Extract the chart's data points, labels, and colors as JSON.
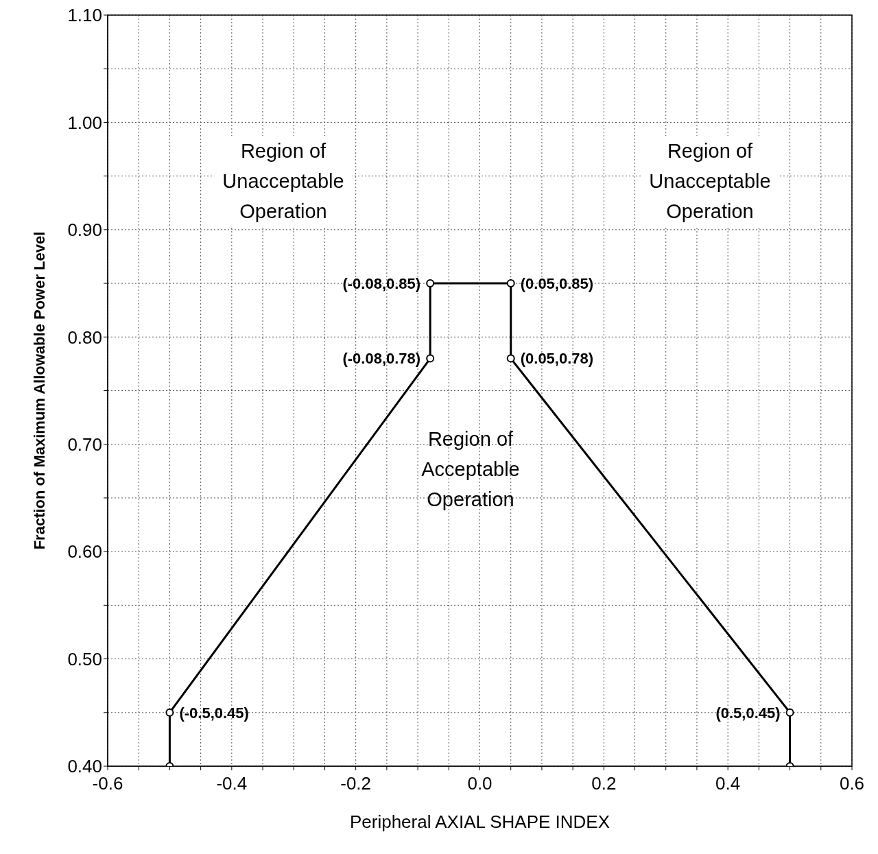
{
  "chart_data": {
    "type": "line",
    "xlabel": "Peripheral AXIAL SHAPE INDEX",
    "ylabel": "Fraction of Maximum Allowable Power Level",
    "x": [
      -0.5,
      -0.5,
      -0.08,
      -0.08,
      0.05,
      0.05,
      0.5,
      0.5
    ],
    "series": [
      {
        "color": "#000000",
        "values": [
          0.4,
          0.45,
          0.78,
          0.85,
          0.85,
          0.78,
          0.45,
          0.4
        ]
      }
    ],
    "xlim": [
      -0.6,
      0.6
    ],
    "xticks": [
      -0.6,
      {
        "value": -0.55,
        "label": null
      },
      {
        "value": -0.5,
        "label": null
      },
      {
        "value": -0.45,
        "label": null
      },
      -0.4,
      {
        "value": -0.35,
        "label": null
      },
      {
        "value": -0.3,
        "label": null
      },
      {
        "value": -0.25,
        "label": null
      },
      -0.2,
      {
        "value": -0.15,
        "label": null
      },
      {
        "value": -0.1,
        "label": null
      },
      {
        "value": -0.05,
        "label": null
      },
      {
        "value": 0,
        "label": "0.0"
      },
      {
        "value": 0.05,
        "label": null
      },
      {
        "value": 0.1,
        "label": null
      },
      {
        "value": 0.15,
        "label": null
      },
      0.2,
      {
        "value": 0.25,
        "label": null
      },
      {
        "value": 0.3,
        "label": null
      },
      {
        "value": 0.35,
        "label": null
      },
      0.4,
      {
        "value": 0.45,
        "label": null
      },
      {
        "value": 0.5,
        "label": null
      },
      {
        "value": 0.55,
        "label": null
      },
      0.6
    ],
    "ylim": [
      0.4,
      1.1
    ],
    "yticks": [
      {
        "value": 0.4,
        "label": "0.40"
      },
      {
        "value": 0.45,
        "label": null
      },
      {
        "value": 0.5,
        "label": "0.50"
      },
      {
        "value": 0.55,
        "label": null
      },
      {
        "value": 0.6,
        "label": "0.60"
      },
      {
        "value": 0.65,
        "label": null
      },
      {
        "value": 0.7,
        "label": "0.70"
      },
      {
        "value": 0.75,
        "label": null
      },
      {
        "value": 0.8,
        "label": "0.80"
      },
      {
        "value": 0.85,
        "label": null
      },
      {
        "value": 0.9,
        "label": "0.90"
      },
      {
        "value": 0.95,
        "label": null
      },
      {
        "value": 1.0,
        "label": "1.00"
      },
      {
        "value": 1.05,
        "label": null
      },
      {
        "value": 1.1,
        "label": "1.10"
      }
    ],
    "grid": true,
    "marker": "circle",
    "line_style": "solid",
    "legend": false,
    "annotations": [
      {
        "text": "(-0.5,0.45)",
        "x": -0.5,
        "y": 0.45
      },
      {
        "text": "(-0.08,0.78)",
        "x": -0.08,
        "y": 0.78
      },
      {
        "text": "(-0.08,0.85)",
        "x": -0.08,
        "y": 0.85
      },
      {
        "text": "(0.05,0.85)",
        "x": 0.05,
        "y": 0.85
      },
      {
        "text": "(0.05,0.78)",
        "x": 0.05,
        "y": 0.78
      },
      {
        "text": "(0.5,0.45)",
        "x": 0.5,
        "y": 0.45
      },
      "Region of\nUnacceptable\nOperation",
      "Region of\nUnacceptable\nOperation",
      "Region of\nAcceptable\nOperation"
    ]
  }
}
